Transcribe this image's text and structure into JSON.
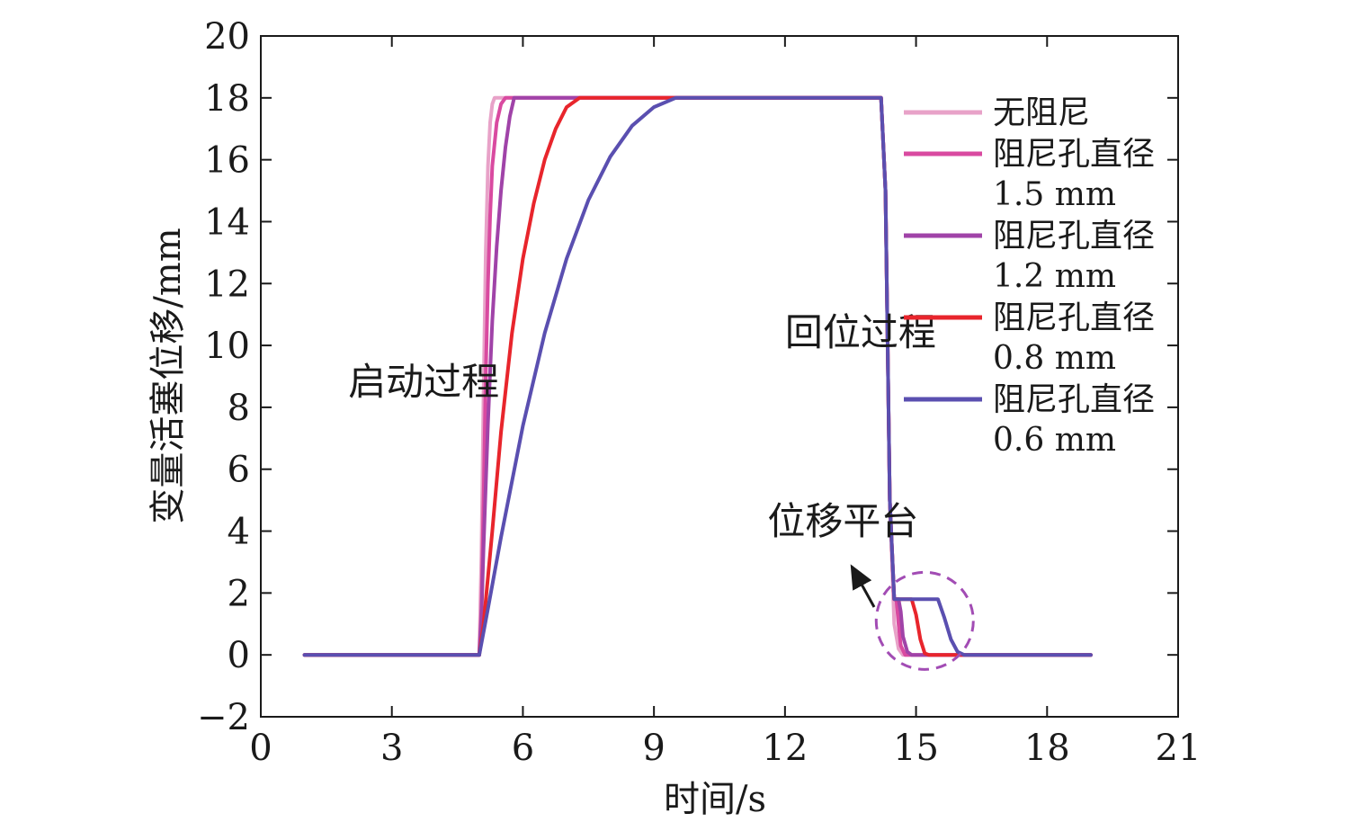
{
  "chart_data": {
    "type": "line",
    "xlabel": "时间/s",
    "ylabel": "变量活塞位移/mm",
    "xlim": [
      0,
      21
    ],
    "ylim": [
      -2,
      20
    ],
    "xticks": [
      0,
      3,
      6,
      9,
      12,
      15,
      18,
      21
    ],
    "yticks": [
      -2,
      0,
      2,
      4,
      6,
      8,
      10,
      12,
      14,
      16,
      18,
      20
    ],
    "xtick_labels": [
      "0",
      "3",
      "6",
      "9",
      "12",
      "15",
      "18",
      "21"
    ],
    "ytick_labels": [
      "−2",
      "0",
      "2",
      "4",
      "6",
      "8",
      "10",
      "12",
      "14",
      "16",
      "18",
      "20"
    ],
    "grid": false,
    "legend_position": "right",
    "series": [
      {
        "name": "无阻尼",
        "label_lines": [
          "无阻尼"
        ],
        "color": "#e8a2c8",
        "x": [
          1.0,
          5.0,
          5.05,
          5.1,
          5.15,
          5.2,
          5.25,
          5.3,
          5.35,
          5.4,
          14.2,
          14.3,
          14.4,
          14.5,
          14.6,
          14.7,
          19.0
        ],
        "y": [
          0,
          0,
          3.2,
          8.5,
          13.0,
          15.8,
          17.2,
          17.8,
          18.0,
          18.0,
          18.0,
          15.0,
          5.0,
          1.0,
          0.2,
          0,
          0
        ]
      },
      {
        "name": "阻尼孔直径1.5 mm",
        "label_lines": [
          "阻尼孔直径",
          "1.5 mm"
        ],
        "color": "#d94aa0",
        "x": [
          1.0,
          5.0,
          5.05,
          5.1,
          5.15,
          5.2,
          5.25,
          5.3,
          5.4,
          5.5,
          5.6,
          14.2,
          14.3,
          14.4,
          14.5,
          14.55,
          14.6,
          14.65,
          14.75,
          19.0
        ],
        "y": [
          0,
          0,
          1.5,
          5.0,
          9.0,
          12.0,
          14.2,
          15.8,
          17.2,
          17.8,
          18.0,
          18.0,
          15.0,
          5.0,
          1.8,
          1.8,
          1.0,
          0.3,
          0,
          0
        ]
      },
      {
        "name": "阻尼孔直径1.2 mm",
        "label_lines": [
          "阻尼孔直径",
          "1.2 mm"
        ],
        "color": "#a043a8",
        "x": [
          1.0,
          5.0,
          5.05,
          5.1,
          5.2,
          5.3,
          5.4,
          5.5,
          5.6,
          5.7,
          5.8,
          14.2,
          14.3,
          14.4,
          14.5,
          14.6,
          14.65,
          14.7,
          14.8,
          14.9,
          19.0
        ],
        "y": [
          0,
          0,
          1.2,
          3.5,
          7.5,
          10.8,
          13.2,
          15.0,
          16.4,
          17.4,
          18.0,
          18.0,
          15.0,
          5.0,
          1.8,
          1.8,
          1.4,
          0.6,
          0.1,
          0,
          0
        ]
      },
      {
        "name": "阻尼孔直径0.8 mm",
        "label_lines": [
          "阻尼孔直径",
          "0.8 mm"
        ],
        "color": "#e8252c",
        "x": [
          1.0,
          5.0,
          5.1,
          5.3,
          5.5,
          5.75,
          6.0,
          6.25,
          6.5,
          6.75,
          7.0,
          7.3,
          14.2,
          14.3,
          14.4,
          14.5,
          14.9,
          15.0,
          15.1,
          15.2,
          15.3,
          19.0
        ],
        "y": [
          0,
          0,
          1.0,
          4.0,
          7.2,
          10.4,
          12.8,
          14.6,
          16.0,
          17.0,
          17.7,
          18.0,
          18.0,
          15.0,
          5.0,
          1.8,
          1.8,
          1.3,
          0.5,
          0.05,
          0,
          0
        ]
      },
      {
        "name": "阻尼孔直径0.6 mm",
        "label_lines": [
          "阻尼孔直径",
          "0.6 mm"
        ],
        "color": "#5a4fb0",
        "x": [
          1.0,
          5.0,
          5.2,
          5.5,
          6.0,
          6.5,
          7.0,
          7.5,
          8.0,
          8.5,
          9.0,
          9.5,
          14.2,
          14.3,
          14.4,
          14.5,
          15.5,
          15.65,
          15.8,
          15.95,
          16.1,
          19.0
        ],
        "y": [
          0,
          0,
          1.5,
          3.8,
          7.4,
          10.4,
          12.8,
          14.7,
          16.1,
          17.1,
          17.7,
          18.0,
          18.0,
          15.0,
          5.0,
          1.8,
          1.8,
          1.2,
          0.5,
          0.1,
          0,
          0
        ]
      }
    ],
    "annotations": [
      {
        "text": "启动过程",
        "x": 2.0,
        "y": 8.4
      },
      {
        "text": "回位过程",
        "x": 12.0,
        "y": 10.0
      },
      {
        "text": "位移平台",
        "x": 11.6,
        "y": 3.9,
        "arrow_to": [
          14.6,
          1.6
        ]
      }
    ],
    "highlight_circle": {
      "x": 15.2,
      "y": 1.1,
      "color": "#a24cb4"
    }
  }
}
